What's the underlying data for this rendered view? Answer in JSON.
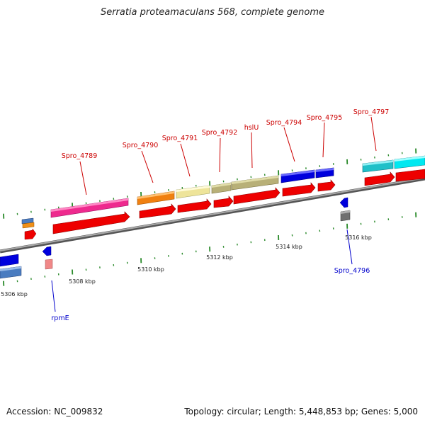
{
  "title": "Serratia proteamaculans 568, complete genome",
  "footer": {
    "accession": "Accession: NC_009832",
    "summary": "Topology: circular; Length: 5,448,853 bp; Genes: 5,000"
  },
  "colors": {
    "backbone": "#8c8c8c",
    "cds_strand": "#ee0000",
    "tick": "#2a8a2a",
    "label_forward": "#cc0000",
    "label_reverse": "#0000cc"
  },
  "axis": {
    "unit": "kbp",
    "ticks": [
      {
        "label": "5306 kbp"
      },
      {
        "label": "5308 kbp"
      },
      {
        "label": "5310 kbp"
      },
      {
        "label": "5312 kbp"
      },
      {
        "label": "5314 kbp"
      },
      {
        "label": "5316 kbp"
      }
    ]
  },
  "genes": [
    {
      "name": "rpmE",
      "strand": "reverse"
    },
    {
      "name": "Spro_4789",
      "strand": "forward"
    },
    {
      "name": "Spro_4790",
      "strand": "forward"
    },
    {
      "name": "Spro_4791",
      "strand": "forward"
    },
    {
      "name": "Spro_4792",
      "strand": "forward"
    },
    {
      "name": "hslU",
      "strand": "forward"
    },
    {
      "name": "Spro_4794",
      "strand": "forward"
    },
    {
      "name": "Spro_4795",
      "strand": "forward"
    },
    {
      "name": "Spro_4796",
      "strand": "reverse"
    },
    {
      "name": "Spro_4797",
      "strand": "forward"
    }
  ]
}
